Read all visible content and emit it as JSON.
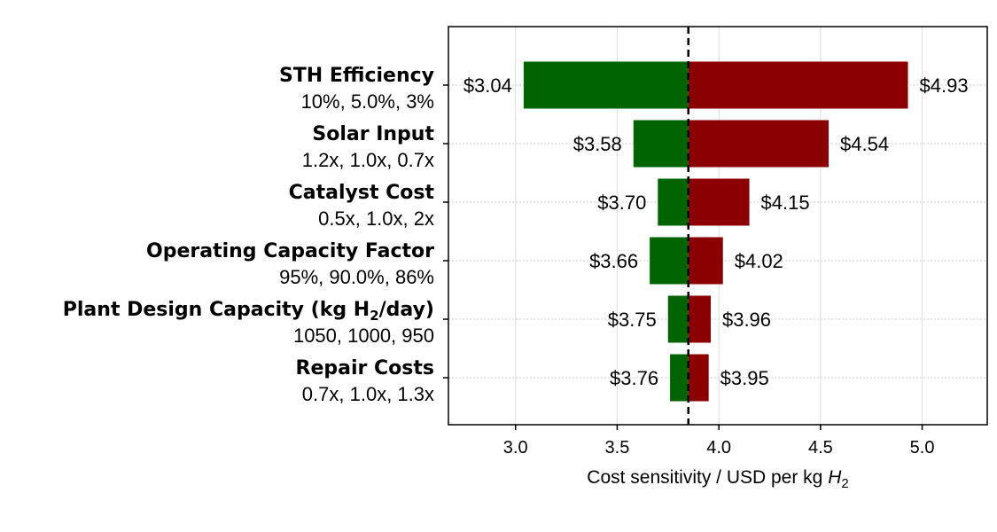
{
  "chart_data": {
    "type": "bar",
    "orientation": "horizontal",
    "variant": "tornado",
    "baseline": 3.85,
    "xlim": [
      2.67,
      5.32
    ],
    "xticks": [
      "3.0",
      "3.5",
      "4.0",
      "4.5",
      "5.0"
    ],
    "xtick_values": [
      3.0,
      3.5,
      4.0,
      4.5,
      5.0
    ],
    "xlabel_text": "Cost sensitivity / USD per kg ",
    "xlabel_symbol": "H",
    "xlabel_subscript": "2",
    "grid": true,
    "low_color": "#006400",
    "high_color": "#8b0000",
    "categories": [
      {
        "name": "STH Efficiency",
        "sub": "10%, 5.0%, 3%",
        "low": 3.04,
        "high": 4.93,
        "low_label": "$3.04",
        "high_label": "$4.93"
      },
      {
        "name": "Solar Input",
        "sub": "1.2x, 1.0x, 0.7x",
        "low": 3.58,
        "high": 4.54,
        "low_label": "$3.58",
        "high_label": "$4.54"
      },
      {
        "name": "Catalyst Cost",
        "sub": "0.5x, 1.0x, 2x",
        "low": 3.7,
        "high": 4.15,
        "low_label": "$3.70",
        "high_label": "$4.15"
      },
      {
        "name": "Operating Capacity Factor",
        "sub": "95%, 90.0%, 86%",
        "low": 3.66,
        "high": 4.02,
        "low_label": "$3.66",
        "high_label": "$4.02"
      },
      {
        "name": "Plant Design Capacity (kg H",
        "name_sub": "2",
        "name_suffix": "/day)",
        "sub": "1050, 1000, 950",
        "low": 3.75,
        "high": 3.96,
        "low_label": "$3.75",
        "high_label": "$3.96"
      },
      {
        "name": "Repair Costs",
        "sub": "0.7x, 1.0x, 1.3x",
        "low": 3.76,
        "high": 3.95,
        "low_label": "$3.76",
        "high_label": "$3.95"
      }
    ]
  }
}
